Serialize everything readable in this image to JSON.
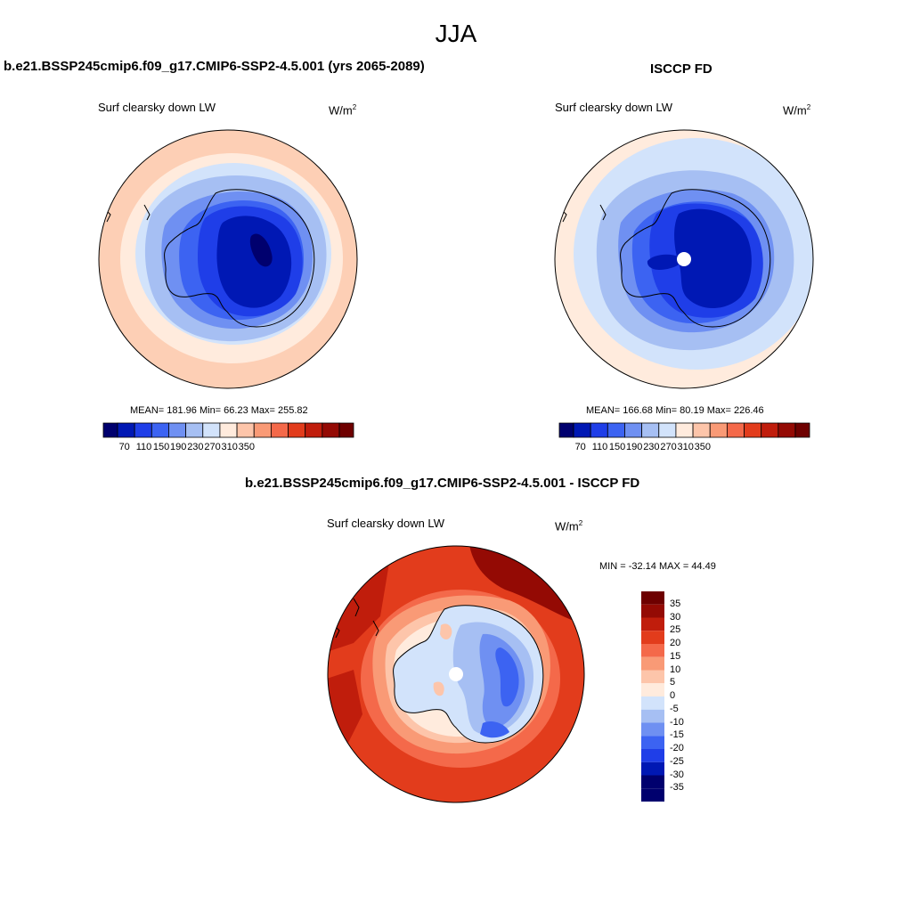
{
  "suptitle": "JJA",
  "colors": {
    "abs_levels": [
      "#00006e",
      "#0018b4",
      "#1f3ee8",
      "#3c63f2",
      "#6f90f2",
      "#a6bff3",
      "#d2e3fb",
      "#ffebdd",
      "#fdc5aa",
      "#f99a76",
      "#f4694a",
      "#e23c1c",
      "#c01d0c",
      "#940a04",
      "#6e0000"
    ],
    "diff_levels": [
      "#00006e",
      "#0018b4",
      "#1f3ee8",
      "#3c63f2",
      "#6f90f2",
      "#a6bff3",
      "#d2e3fb",
      "#ffebdd",
      "#fdc5aa",
      "#f99a76",
      "#f4694a",
      "#e23c1c",
      "#c01d0c",
      "#940a04",
      "#6e0000"
    ]
  },
  "panels": [
    {
      "title": "b.e21.BSSP245cmip6.f09_g17.CMIP6-SSP2-4.5.001 (yrs 2065-2089)",
      "subtitle": "Surf clearsky down LW",
      "units": "W/m",
      "units_exp": "2",
      "stats": "MEAN= 181.96  Min=  66.23  Max= 255.82",
      "colorbar_ticks": [
        "70",
        "110",
        "150",
        "190",
        "230",
        "270",
        "310",
        "350"
      ]
    },
    {
      "title": "ISCCP FD",
      "subtitle": "Surf clearsky down LW",
      "units": "W/m",
      "units_exp": "2",
      "stats": "MEAN= 166.68  Min=  80.19  Max= 226.46",
      "colorbar_ticks": [
        "70",
        "110",
        "150",
        "190",
        "230",
        "270",
        "310",
        "350"
      ]
    },
    {
      "title": "b.e21.BSSP245cmip6.f09_g17.CMIP6-SSP2-4.5.001 - ISCCP FD",
      "subtitle": "Surf clearsky down LW",
      "units": "W/m",
      "units_exp": "2",
      "stats": "MIN = -32.14 MAX =  44.49",
      "colorbar_ticks": [
        "35",
        "30",
        "25",
        "20",
        "15",
        "10",
        "5",
        "0",
        "-5",
        "-10",
        "-15",
        "-20",
        "-25",
        "-30",
        "-35"
      ]
    }
  ]
}
